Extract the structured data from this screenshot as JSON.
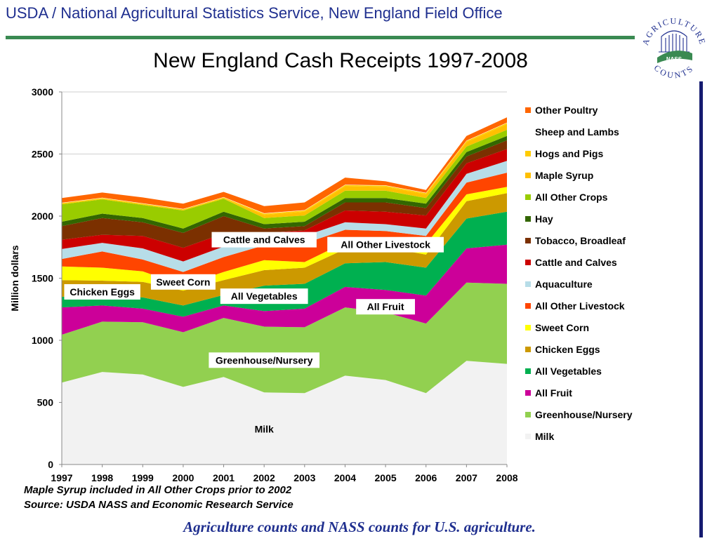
{
  "header": {
    "title": "USDA / National Agricultural Statistics Service, New England Field Office"
  },
  "logo": {
    "top_text": "AGRICULTURE",
    "bottom_text": "COUNTS",
    "badge_text": "NASS"
  },
  "notes": {
    "line1": "Maple Syrup included in All Other Crops prior to 2002",
    "line2": "Source: USDA  NASS and Economic Research Service"
  },
  "tagline": "Agriculture counts and NASS counts for U.S. agriculture.",
  "colors": {
    "header_text": "#1f2f8f",
    "header_rule": "#3a8a52",
    "side_bar": "#151b70"
  },
  "chart_data": {
    "type": "area",
    "stacked": true,
    "title": "New England Cash Receipts 1997-2008",
    "xlabel": "",
    "ylabel": "Million dollars",
    "ylim": [
      0,
      3000
    ],
    "yticks": [
      0,
      500,
      1000,
      1500,
      2000,
      2500,
      3000
    ],
    "grid": true,
    "legend_position": "right",
    "x": [
      "1997",
      "1998",
      "1999",
      "2000",
      "2001",
      "2002",
      "2003",
      "2004",
      "2005",
      "2006",
      "2007",
      "2008"
    ],
    "series": [
      {
        "name": "Milk",
        "color": "#f2f2f2",
        "values": [
          660,
          745,
          725,
          625,
          705,
          580,
          575,
          715,
          680,
          575,
          835,
          810
        ]
      },
      {
        "name": "Greenhouse/Nursery",
        "color": "#92d050",
        "values": [
          385,
          405,
          420,
          440,
          475,
          530,
          530,
          550,
          545,
          560,
          630,
          645
        ]
      },
      {
        "name": "All Fruit",
        "color": "#cc0099",
        "values": [
          220,
          130,
          110,
          125,
          100,
          125,
          150,
          165,
          180,
          225,
          275,
          315
        ]
      },
      {
        "name": "All Vegetables",
        "color": "#00b050",
        "values": [
          85,
          90,
          90,
          90,
          85,
          205,
          200,
          190,
          225,
          225,
          240,
          265
        ]
      },
      {
        "name": "Chicken Eggs",
        "color": "#cc9900",
        "values": [
          135,
          110,
          125,
          120,
          120,
          125,
          130,
          115,
          120,
          105,
          140,
          150
        ]
      },
      {
        "name": "Sweet Corn",
        "color": "#ffff00",
        "values": [
          110,
          105,
          85,
          40,
          65,
          80,
          45,
          55,
          55,
          85,
          55,
          50
        ]
      },
      {
        "name": "All Other Livestock",
        "color": "#ff4500",
        "values": [
          60,
          130,
          95,
          110,
          120,
          120,
          150,
          100,
          75,
          65,
          95,
          115
        ]
      },
      {
        "name": "Aquaculture",
        "color": "#b7dde8",
        "values": [
          80,
          70,
          90,
          85,
          85,
          55,
          60,
          60,
          55,
          60,
          70,
          95
        ]
      },
      {
        "name": "Cattle and Calves",
        "color": "#cc0000",
        "values": [
          75,
          65,
          100,
          110,
          105,
          45,
          45,
          95,
          100,
          105,
          85,
          95
        ]
      },
      {
        "name": "Tobacco, Broadleaf",
        "color": "#7b3000",
        "values": [
          110,
          135,
          110,
          120,
          140,
          35,
          35,
          65,
          75,
          60,
          55,
          70
        ]
      },
      {
        "name": "Hay",
        "color": "#336600",
        "values": [
          35,
          35,
          35,
          35,
          35,
          35,
          35,
          35,
          35,
          35,
          35,
          35
        ]
      },
      {
        "name": "All Other Crops",
        "color": "#99cc00",
        "values": [
          140,
          115,
          105,
          145,
          105,
          50,
          50,
          60,
          60,
          45,
          45,
          50
        ]
      },
      {
        "name": "Maple Syrup",
        "color": "#ffc000",
        "values": [
          0,
          0,
          0,
          0,
          0,
          25,
          30,
          35,
          30,
          30,
          35,
          45
        ]
      },
      {
        "name": "Hogs and Pigs",
        "color": "#ffcc00",
        "values": [
          10,
          10,
          10,
          10,
          10,
          10,
          10,
          10,
          10,
          10,
          10,
          10
        ]
      },
      {
        "name": "Sheep and Lambs",
        "color": "#ffffff",
        "values": [
          3,
          3,
          3,
          3,
          3,
          3,
          3,
          3,
          3,
          3,
          3,
          3
        ]
      },
      {
        "name": "Other Poultry",
        "color": "#ff6600",
        "values": [
          37,
          42,
          47,
          42,
          42,
          57,
          62,
          57,
          32,
          22,
          37,
          42
        ]
      }
    ],
    "legend_order": [
      "Other Poultry",
      "Sheep and Lambs",
      "Hogs and Pigs",
      "Maple Syrup",
      "All Other Crops",
      "Hay",
      "Tobacco, Broadleaf",
      "Cattle and Calves",
      "Aquaculture",
      "All Other Livestock",
      "Sweet Corn",
      "Chicken Eggs",
      "All Vegetables",
      "All Fruit",
      "Greenhouse/Nursery",
      "Milk"
    ],
    "annotations": [
      {
        "text": "Cattle and Calves",
        "x": "2002",
        "y": 1810,
        "boxed": true
      },
      {
        "text": "All Other Livestock",
        "x": "2005",
        "y": 1770,
        "boxed": true
      },
      {
        "text": "Sweet Corn",
        "x": "2000",
        "y": 1470,
        "boxed": true
      },
      {
        "text": "Chicken Eggs",
        "x": "1998",
        "y": 1390,
        "boxed": true
      },
      {
        "text": "All Vegetables",
        "x": "2002",
        "y": 1355,
        "boxed": true
      },
      {
        "text": "All Fruit",
        "x": "2005",
        "y": 1270,
        "boxed": true
      },
      {
        "text": "Greenhouse/Nursery",
        "x": "2002",
        "y": 840,
        "boxed": true
      },
      {
        "text": "Milk",
        "x": "2002",
        "y": 285,
        "boxed": false
      }
    ]
  }
}
